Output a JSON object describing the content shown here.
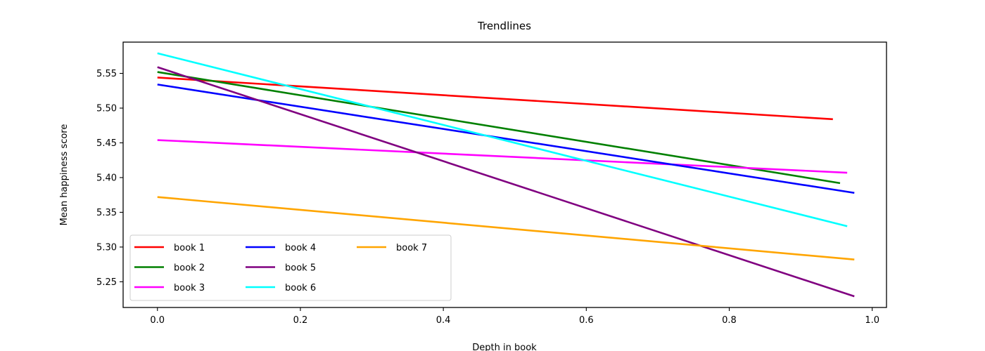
{
  "chart_data": {
    "type": "line",
    "title": "Trendlines",
    "xlabel": "Depth in book",
    "ylabel": "Mean happiness score",
    "xlim": [
      -0.048,
      1.02
    ],
    "ylim": [
      5.213,
      5.595
    ],
    "xticks": [
      0.0,
      0.2,
      0.4,
      0.6,
      0.8,
      1.0
    ],
    "yticks": [
      5.25,
      5.3,
      5.35,
      5.4,
      5.45,
      5.5,
      5.55
    ],
    "xtick_labels": [
      "0.0",
      "0.2",
      "0.4",
      "0.6",
      "0.8",
      "1.0"
    ],
    "ytick_labels": [
      "5.25",
      "5.30",
      "5.35",
      "5.40",
      "5.45",
      "5.50",
      "5.55"
    ],
    "grid": false,
    "legend": {
      "placement": "lower-left",
      "columns": 3
    },
    "series": [
      {
        "name": "book 1",
        "color": "#ff0000",
        "x": [
          0.0,
          0.945
        ],
        "y": [
          5.544,
          5.484
        ]
      },
      {
        "name": "book 2",
        "color": "#008000",
        "x": [
          0.0,
          0.955
        ],
        "y": [
          5.552,
          5.392
        ]
      },
      {
        "name": "book 3",
        "color": "#ff00ff",
        "x": [
          0.0,
          0.965
        ],
        "y": [
          5.454,
          5.407
        ]
      },
      {
        "name": "book 4",
        "color": "#0000ff",
        "x": [
          0.0,
          0.975
        ],
        "y": [
          5.534,
          5.378
        ]
      },
      {
        "name": "book 5",
        "color": "#800080",
        "x": [
          0.0,
          0.975
        ],
        "y": [
          5.559,
          5.229
        ]
      },
      {
        "name": "book 6",
        "color": "#00ffff",
        "x": [
          0.0,
          0.965
        ],
        "y": [
          5.579,
          5.33
        ]
      },
      {
        "name": "book 7",
        "color": "#ffa500",
        "x": [
          0.0,
          0.975
        ],
        "y": [
          5.372,
          5.282
        ]
      }
    ]
  }
}
